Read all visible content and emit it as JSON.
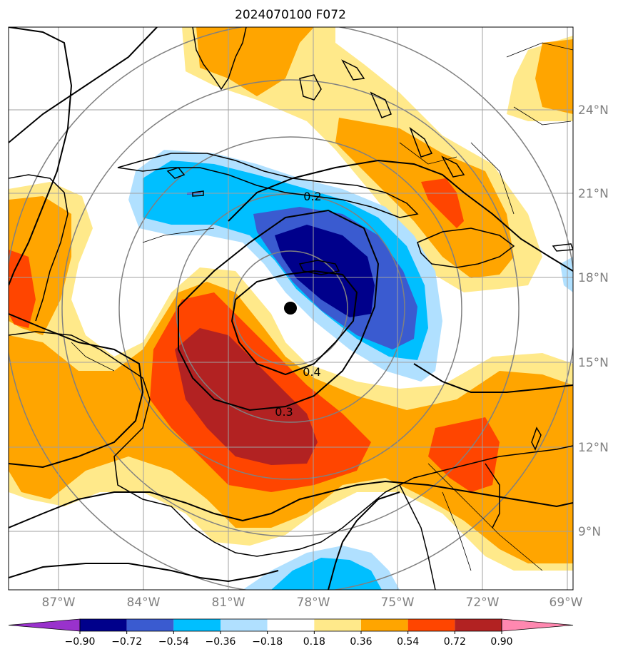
{
  "title": "2024070100 F072",
  "lat_labels": [
    "24°N",
    "21°N",
    "18°N",
    "15°N",
    "12°N",
    "9°N"
  ],
  "lon_labels": [
    "87°W",
    "84°W",
    "81°W",
    "78°W",
    "75°W",
    "72°W",
    "69°W"
  ],
  "contour_labels": [
    "0.2",
    "0.4",
    "0.3"
  ],
  "colorbar": {
    "ticks": [
      "−0.90",
      "−0.72",
      "−0.54",
      "−0.36",
      "−0.18",
      "0.18",
      "0.36",
      "0.54",
      "0.72",
      "0.90"
    ],
    "colors": [
      "#9932cc",
      "#00008b",
      "#3a5bd0",
      "#00bfff",
      "#b0e0ff",
      "#ffffff",
      "#ffe98a",
      "#ffa500",
      "#ff4500",
      "#b22222",
      "#ff88b0"
    ]
  },
  "legend_colors": {
    "light_yellow": "#ffe98a",
    "orange": "#ffa500",
    "red_orange": "#ff4500",
    "dark_red": "#b22222",
    "light_blue": "#b0e0ff",
    "deep_sky": "#00bfff",
    "royal_blue": "#3a5bd0",
    "navy": "#00008b"
  }
}
